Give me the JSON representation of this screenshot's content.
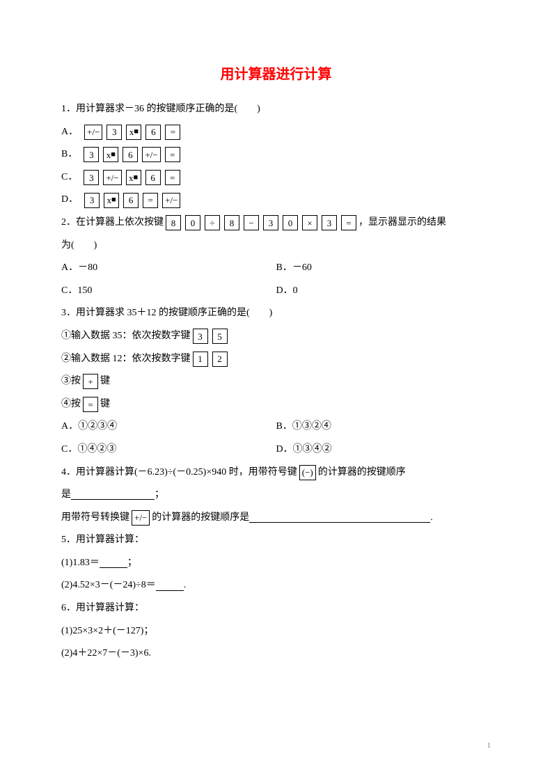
{
  "title": "用计算器进行计算",
  "q1": {
    "stem": "1．用计算器求－36 的按键顺序正确的是(　　)",
    "labels": {
      "a": "A．",
      "b": "B．",
      "c": "C．",
      "d": "D．"
    },
    "keys": {
      "pm": "+/−",
      "n3": "3",
      "n6": "6",
      "eq": "=",
      "xsq_pre": "x",
      "xsq_sq": "■"
    }
  },
  "q2": {
    "pre": "2．在计算器上依次按键",
    "post": "，显示器显示的结果",
    "post2": "为(　　)",
    "keys": {
      "n8": "8",
      "n0": "0",
      "div": "÷",
      "minus": "−",
      "n3": "3",
      "mul": "×",
      "eq": "="
    },
    "opts": {
      "a": "A．－80",
      "b": "B．－60",
      "c": "C．150",
      "d": "D．0"
    }
  },
  "q3": {
    "stem": "3．用计算器求 35＋12 的按键顺序正确的是(　　)",
    "s1pre": "①输入数据 35：依次按数字键",
    "s2pre": "②输入数据 12：依次按数字键",
    "s3pre": "③按",
    "s3post": "键",
    "s4pre": "④按",
    "s4post": "键",
    "keys": {
      "n3": "3",
      "n5": "5",
      "n1": "1",
      "n2": "2",
      "plus": "+",
      "eq": "="
    },
    "opts": {
      "a": "A．①②③④",
      "b": "B．①③②④",
      "c": "C．①④②③",
      "d": "D．①③④②"
    }
  },
  "q4": {
    "pre": "4．用计算器计算(－6.23)÷(－0.25)×940 时，用带符号键",
    "mid": "的计算器的按键顺序",
    "line2a": "是",
    "line2b": "；",
    "line3a": "用带符号转换键",
    "line3b": "的计算器的按键顺序是",
    "line3c": ".",
    "keys": {
      "neg": "(−)",
      "pm": "+/−"
    }
  },
  "q5": {
    "stem": "5．用计算器计算：",
    "p1a": "(1)1.83＝",
    "p1b": "；",
    "p2a": "(2)4.52×3－(－24)÷8＝",
    "p2b": "."
  },
  "q6": {
    "stem": "6．用计算器计算：",
    "p1": "(1)25×3×2＋(－127)；",
    "p2": "(2)4＋22×7－(－3)×6."
  },
  "pageNum": "1",
  "colors": {
    "title": "#ff0000",
    "text": "#000000",
    "pagenum": "#808080",
    "bg": "#ffffff"
  }
}
